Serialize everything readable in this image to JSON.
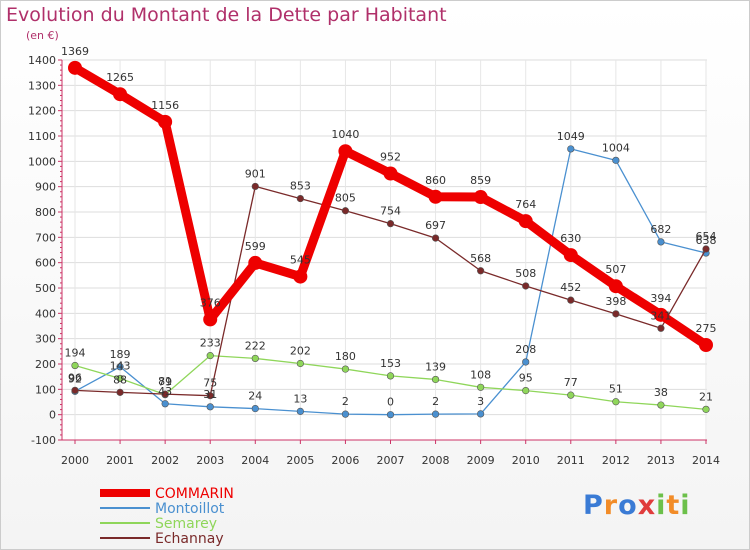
{
  "chart_data": {
    "type": "line",
    "title": "Evolution du Montant de la Dette par Habitant",
    "unit_label": "(en €)",
    "x": [
      "2000",
      "2001",
      "2002",
      "2003",
      "2004",
      "2005",
      "2006",
      "2007",
      "2008",
      "2009",
      "2010",
      "2011",
      "2012",
      "2013",
      "2014"
    ],
    "ylim": [
      -100,
      1400
    ],
    "yticks": [
      -100,
      0,
      100,
      200,
      300,
      400,
      500,
      600,
      700,
      800,
      900,
      1000,
      1100,
      1200,
      1300,
      1400
    ],
    "grid": true,
    "legend_position": "bottom-left",
    "series": [
      {
        "name": "COMMARIN",
        "color": "#ee0000",
        "values": [
          1369,
          1265,
          1156,
          376,
          599,
          545,
          1040,
          952,
          860,
          859,
          764,
          630,
          507,
          394,
          275
        ]
      },
      {
        "name": "Montoillot",
        "color": "#4a90d0",
        "values": [
          92,
          189,
          43,
          31,
          24,
          13,
          2,
          0,
          2,
          3,
          208,
          1049,
          1004,
          682,
          638
        ]
      },
      {
        "name": "Semarey",
        "color": "#8fd65a",
        "values": [
          194,
          143,
          79,
          233,
          222,
          202,
          180,
          153,
          139,
          108,
          95,
          77,
          51,
          38,
          21
        ]
      },
      {
        "name": "Echannay",
        "color": "#7a2a2a",
        "values": [
          96,
          88,
          81,
          75,
          901,
          853,
          805,
          754,
          697,
          568,
          508,
          452,
          398,
          341,
          654
        ]
      }
    ]
  },
  "logo": {
    "letters": [
      "P",
      "r",
      "o",
      "x",
      "i",
      "t",
      "i"
    ],
    "colors": [
      "#3a7bd5",
      "#f28c28",
      "#3a7bd5",
      "#e03c3c",
      "#6cc04a",
      "#f28c28",
      "#6cc04a"
    ]
  }
}
